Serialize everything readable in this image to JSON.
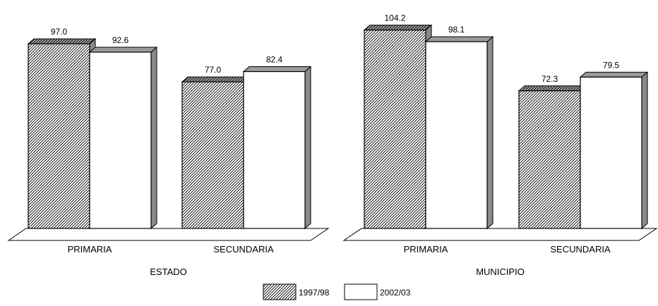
{
  "chart_data": {
    "type": "bar",
    "bar_3d": true,
    "legend_position": "bottom-center",
    "grid": false,
    "colors": {
      "hatched": "#000000",
      "plain": "#ffffff",
      "side": "#8a8a8a",
      "top": "#9a9a9a"
    },
    "series": [
      {
        "name": "1997/98",
        "fill": "hatched"
      },
      {
        "name": "2002/03",
        "fill": "plain"
      }
    ],
    "panels": [
      {
        "label": "ESTADO",
        "categories": [
          {
            "label": "PRIMARIA",
            "values": [
              97.0,
              92.6
            ],
            "value_labels": [
              "97.0",
              "92.6"
            ]
          },
          {
            "label": "SECUNDARIA",
            "values": [
              77.0,
              82.4
            ],
            "value_labels": [
              "77.0",
              "82.4"
            ]
          }
        ]
      },
      {
        "label": "MUNICIPIO",
        "categories": [
          {
            "label": "PRIMARIA",
            "values": [
              104.2,
              98.1
            ],
            "value_labels": [
              "104.2",
              "98.1"
            ]
          },
          {
            "label": "SECUNDARIA",
            "values": [
              72.3,
              79.5
            ],
            "value_labels": [
              "72.3",
              "79.5"
            ]
          }
        ]
      }
    ]
  }
}
